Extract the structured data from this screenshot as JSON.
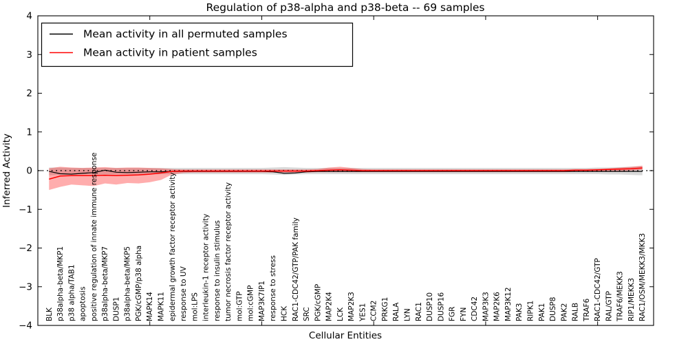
{
  "chart_data": {
    "type": "line",
    "title": "Regulation of p38-alpha and p38-beta -- 69 samples",
    "xlabel": "Cellular Entities",
    "ylabel": "Inferred Activity",
    "axes": {
      "ylim": [
        -4,
        4
      ],
      "yticks": [
        4,
        3,
        2,
        1,
        0,
        -1,
        -2,
        -3,
        -4
      ],
      "xlim": [
        0,
        55
      ],
      "xticks": [
        10,
        20,
        30,
        40,
        50
      ],
      "grid": false,
      "zero_line_style": "dotted",
      "zero_line_color": "#000000"
    },
    "legend": {
      "position": "upper left",
      "entries": [
        {
          "label": "Mean activity in all permuted samples",
          "color": "#000000"
        },
        {
          "label": "Mean activity in patient samples",
          "color": "#ff0000"
        }
      ]
    },
    "categories": [
      "BLK",
      "p38alpha-beta/MKP1",
      "p38 alpha/TAB1",
      "apoptosis",
      "positive regulation of innate immune response",
      "p38alpha-beta/MKP7",
      "DUSP1",
      "p38alpha-beta/MKP5",
      "PGK/cGMP/p38 alpha",
      "MAPK14",
      "MAPK11",
      "epidermal growth factor receptor activity",
      "response to UV",
      "mol:LPS",
      "interleukin-1 receptor activity",
      "response to insulin stimulus",
      "tumor necrosis factor receptor activity",
      "mol:GTP",
      "mol:cGMP",
      "MAP3K7IP1",
      "response to stress",
      "HCK",
      "RAC1-CDC42/GTP/PAK family",
      "SRC",
      "PGK/cGMP",
      "MAP2K4",
      "LCK",
      "MAP2K3",
      "YES1",
      "CCM2",
      "PRKG1",
      "RALA",
      "LYN",
      "RAC1",
      "DUSP10",
      "DUSP16",
      "FGR",
      "FYN",
      "CDC42",
      "MAP3K3",
      "MAP2K6",
      "MAP3K12",
      "PAK3",
      "RIPK1",
      "PAK1",
      "DUSP8",
      "PAK2",
      "RALB",
      "TRAF6",
      "RAC1-CDC42/GTP",
      "RAL/GTP",
      "TRAF6/MEKK3",
      "RIP1/MEKK3",
      "RAC1/OSM/MEKK3/MKK3"
    ],
    "series": [
      {
        "name": "Mean activity in all permuted samples",
        "color": "#000000",
        "width": 1.2,
        "values": [
          -0.02,
          -0.08,
          -0.09,
          -0.07,
          -0.05,
          0.01,
          -0.04,
          -0.05,
          -0.04,
          -0.03,
          -0.03,
          -0.02,
          -0.02,
          -0.02,
          -0.02,
          -0.02,
          -0.02,
          -0.02,
          -0.02,
          -0.02,
          -0.03,
          -0.07,
          -0.06,
          -0.03,
          -0.02,
          -0.02,
          -0.02,
          -0.02,
          -0.02,
          -0.02,
          -0.02,
          -0.02,
          -0.02,
          -0.02,
          -0.02,
          -0.02,
          -0.02,
          -0.02,
          -0.02,
          -0.02,
          -0.02,
          -0.02,
          -0.02,
          -0.02,
          -0.02,
          -0.02,
          -0.02,
          -0.02,
          -0.02,
          -0.02,
          -0.02,
          -0.02,
          -0.02,
          -0.02
        ]
      },
      {
        "name": "Mean activity in patient samples",
        "color": "#ff0000",
        "width": 1.5,
        "values": [
          -0.22,
          -0.14,
          -0.13,
          -0.13,
          -0.13,
          -0.12,
          -0.13,
          -0.12,
          -0.11,
          -0.09,
          -0.06,
          -0.02,
          -0.01,
          -0.01,
          -0.01,
          -0.01,
          -0.01,
          -0.01,
          -0.01,
          -0.01,
          -0.01,
          -0.01,
          -0.01,
          -0.01,
          0,
          0.01,
          0.02,
          0.01,
          0,
          0,
          0,
          0,
          0,
          0,
          0,
          0,
          0,
          0,
          0,
          0,
          0,
          0,
          0,
          0,
          0,
          0,
          0,
          0.01,
          0.01,
          0.02,
          0.03,
          0.04,
          0.05,
          0.07
        ]
      }
    ],
    "bands": [
      {
        "name": "permuted-samples-spread",
        "color": "rgba(120,120,120,0.28)",
        "upper": [
          0.08,
          0.08,
          0.07,
          0.07,
          0.07,
          0.07,
          0.07,
          0.07,
          0.07,
          0.07,
          0.07,
          0.07,
          0.07,
          0.07,
          0.07,
          0.07,
          0.07,
          0.07,
          0.07,
          0.07,
          0.08,
          0.09,
          0.08,
          0.07,
          0.07,
          0.07,
          0.07,
          0.07,
          0.07,
          0.07,
          0.07,
          0.07,
          0.07,
          0.07,
          0.07,
          0.07,
          0.07,
          0.07,
          0.07,
          0.07,
          0.07,
          0.07,
          0.07,
          0.07,
          0.07,
          0.07,
          0.07,
          0.07,
          0.07,
          0.08,
          0.08,
          0.09,
          0.1,
          0.11
        ],
        "lower": [
          -0.12,
          -0.11,
          -0.1,
          -0.1,
          -0.1,
          -0.1,
          -0.1,
          -0.1,
          -0.1,
          -0.1,
          -0.09,
          -0.09,
          -0.09,
          -0.09,
          -0.09,
          -0.09,
          -0.09,
          -0.09,
          -0.09,
          -0.09,
          -0.1,
          -0.11,
          -0.1,
          -0.09,
          -0.09,
          -0.09,
          -0.09,
          -0.09,
          -0.09,
          -0.09,
          -0.09,
          -0.09,
          -0.09,
          -0.09,
          -0.09,
          -0.09,
          -0.09,
          -0.09,
          -0.09,
          -0.09,
          -0.09,
          -0.09,
          -0.09,
          -0.09,
          -0.09,
          -0.09,
          -0.09,
          -0.09,
          -0.09,
          -0.09,
          -0.1,
          -0.1,
          -0.11,
          -0.12
        ]
      },
      {
        "name": "patient-samples-spread",
        "color": "rgba(255,0,0,0.32)",
        "upper": [
          0.06,
          0.1,
          0.08,
          0.07,
          0.08,
          0.09,
          0.07,
          0.08,
          0.08,
          0.07,
          0.06,
          0.04,
          0.03,
          0.03,
          0.03,
          0.03,
          0.03,
          0.03,
          0.03,
          0.03,
          0.03,
          0.03,
          0.03,
          0.03,
          0.04,
          0.08,
          0.1,
          0.07,
          0.04,
          0.03,
          0.03,
          0.03,
          0.03,
          0.03,
          0.03,
          0.03,
          0.03,
          0.03,
          0.03,
          0.03,
          0.03,
          0.03,
          0.03,
          0.03,
          0.03,
          0.03,
          0.03,
          0.04,
          0.04,
          0.05,
          0.06,
          0.08,
          0.1,
          0.13
        ],
        "lower": [
          -0.5,
          -0.42,
          -0.36,
          -0.38,
          -0.4,
          -0.33,
          -0.36,
          -0.32,
          -0.33,
          -0.3,
          -0.24,
          -0.1,
          -0.06,
          -0.05,
          -0.05,
          -0.05,
          -0.05,
          -0.05,
          -0.05,
          -0.05,
          -0.05,
          -0.05,
          -0.05,
          -0.05,
          -0.04,
          -0.04,
          -0.04,
          -0.04,
          -0.04,
          -0.04,
          -0.04,
          -0.04,
          -0.04,
          -0.04,
          -0.04,
          -0.04,
          -0.04,
          -0.04,
          -0.04,
          -0.04,
          -0.04,
          -0.04,
          -0.04,
          -0.04,
          -0.04,
          -0.04,
          -0.04,
          -0.03,
          -0.03,
          -0.03,
          -0.02,
          -0.01,
          0,
          0.02
        ]
      }
    ]
  }
}
